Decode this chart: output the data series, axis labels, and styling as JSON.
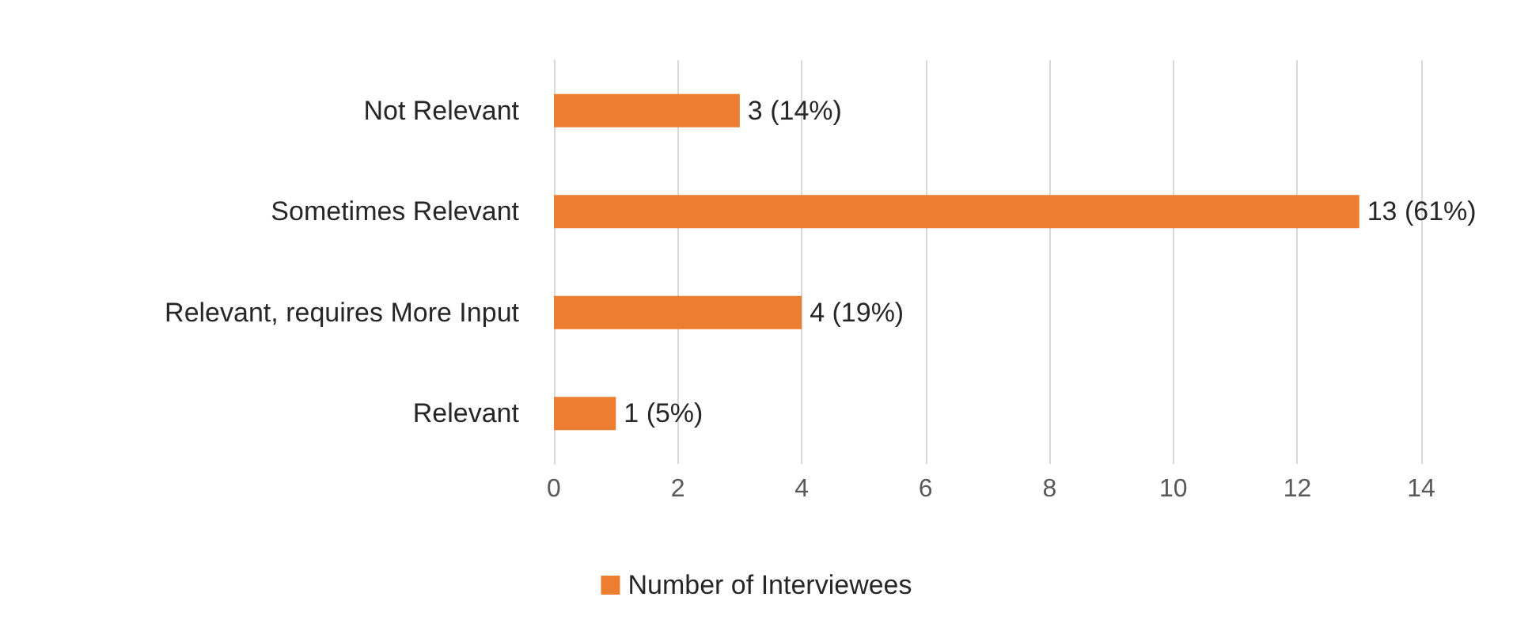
{
  "chart_data": {
    "type": "bar",
    "orientation": "horizontal",
    "categories": [
      "Not Relevant",
      "Sometimes Relevant",
      "Relevant, requires More Input",
      "Relevant"
    ],
    "series": [
      {
        "name": "Number of Interviewees",
        "color": "#ed7d31",
        "values": [
          3,
          13,
          4,
          1
        ],
        "value_labels": [
          "3 (14%)",
          "13 (61%)",
          "4 (19%)",
          "1 (5%)"
        ]
      }
    ],
    "xlim": [
      0,
      14
    ],
    "xticks": [
      0,
      2,
      4,
      6,
      8,
      10,
      12,
      14
    ],
    "grid": "x",
    "legend": "bottom"
  }
}
